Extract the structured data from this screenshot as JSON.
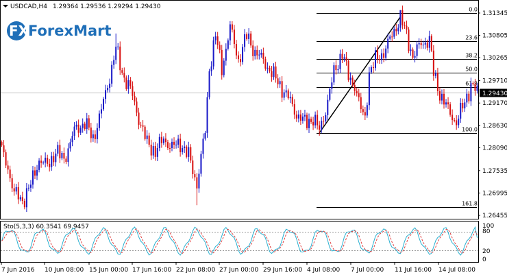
{
  "header": {
    "symbol": "USDCAD,H4",
    "ohlc": "1.29364 1.29536 1.29294 1.29430"
  },
  "logo": {
    "mark": "FX",
    "text": "ForexMart",
    "color": "#1f6fb8"
  },
  "stoch": {
    "label": "Sto(5,3,3) 60.3541 69.9457",
    "levels": [
      "100",
      "80",
      "20",
      "0"
    ]
  },
  "colors": {
    "bull": "#1a1ac8",
    "bear": "#d81010",
    "fib": "#000000",
    "main_line": "#2ab0d0",
    "signal_line": "#e04040"
  },
  "chart_data": {
    "type": "candlestick",
    "ylim": [
      1.26455,
      1.31345
    ],
    "y_ticks": [
      "1.31345",
      "1.30805",
      "1.30265",
      "1.29710",
      "1.29170",
      "1.28630",
      "1.28090",
      "1.27535",
      "1.26995",
      "1.26455"
    ],
    "x_ticks": [
      "7 Jun 2016",
      "10 Jun 08:00",
      "15 Jun 00:00",
      "17 Jun 16:00",
      "22 Jun 08:00",
      "27 Jun 00:00",
      "29 Jun 16:00",
      "4 Jul 08:00",
      "7 Jul 00:00",
      "11 Jul 16:00",
      "14 Jul 08:00"
    ],
    "current_price": "1.29430",
    "fibonacci": {
      "high": 1.31345,
      "low": 1.2845,
      "levels": [
        {
          "label": "0.0",
          "ratio": 0
        },
        {
          "label": "23.6",
          "ratio": 0.236
        },
        {
          "label": "38.2",
          "ratio": 0.382
        },
        {
          "label": "50.0",
          "ratio": 0.5
        },
        {
          "label": "61.8",
          "ratio": 0.618
        },
        {
          "label": "100.0",
          "ratio": 1.0
        },
        {
          "label": "161.8",
          "ratio": 1.618
        }
      ]
    },
    "trend_line": {
      "from_bar": 153,
      "from_price": 1.2845,
      "to_bar": 192,
      "to_price": 1.3125
    },
    "ohlc_anchors": [
      [
        0,
        1.28
      ],
      [
        3,
        1.276
      ],
      [
        6,
        1.27
      ],
      [
        10,
        1.268
      ],
      [
        14,
        1.272
      ],
      [
        18,
        1.278
      ],
      [
        22,
        1.2765
      ],
      [
        26,
        1.28
      ],
      [
        30,
        1.278
      ],
      [
        35,
        1.285
      ],
      [
        40,
        1.287
      ],
      [
        44,
        1.283
      ],
      [
        48,
        1.29
      ],
      [
        52,
        1.298
      ],
      [
        55,
        1.305
      ],
      [
        58,
        1.299
      ],
      [
        62,
        1.295
      ],
      [
        66,
        1.288
      ],
      [
        70,
        1.282
      ],
      [
        74,
        1.28
      ],
      [
        78,
        1.283
      ],
      [
        82,
        1.281
      ],
      [
        86,
        1.282
      ],
      [
        90,
        1.279
      ],
      [
        94,
        1.272
      ],
      [
        98,
        1.285
      ],
      [
        100,
        1.3
      ],
      [
        103,
        1.308
      ],
      [
        106,
        1.3
      ],
      [
        110,
        1.31
      ],
      [
        114,
        1.302
      ],
      [
        118,
        1.308
      ],
      [
        122,
        1.304
      ],
      [
        126,
        1.302
      ],
      [
        130,
        1.299
      ],
      [
        134,
        1.296
      ],
      [
        138,
        1.293
      ],
      [
        142,
        1.289
      ],
      [
        146,
        1.287
      ],
      [
        150,
        1.288
      ],
      [
        153,
        1.285
      ],
      [
        156,
        1.29
      ],
      [
        160,
        1.299
      ],
      [
        164,
        1.304
      ],
      [
        167,
        1.298
      ],
      [
        170,
        1.296
      ],
      [
        173,
        1.29
      ],
      [
        175,
        1.288
      ],
      [
        177,
        1.299
      ],
      [
        180,
        1.302
      ],
      [
        184,
        1.304
      ],
      [
        188,
        1.308
      ],
      [
        192,
        1.3125
      ],
      [
        195,
        1.308
      ],
      [
        198,
        1.303
      ],
      [
        202,
        1.306
      ],
      [
        206,
        1.307
      ],
      [
        208,
        1.299
      ],
      [
        211,
        1.294
      ],
      [
        215,
        1.29
      ],
      [
        219,
        1.287
      ],
      [
        223,
        1.292
      ],
      [
        226,
        1.296
      ],
      [
        229,
        1.2943
      ]
    ],
    "stochastic": {
      "ylim": [
        0,
        100
      ],
      "levels": [
        20,
        80
      ],
      "main_last": 60.3541,
      "signal_last": 69.9457
    }
  }
}
